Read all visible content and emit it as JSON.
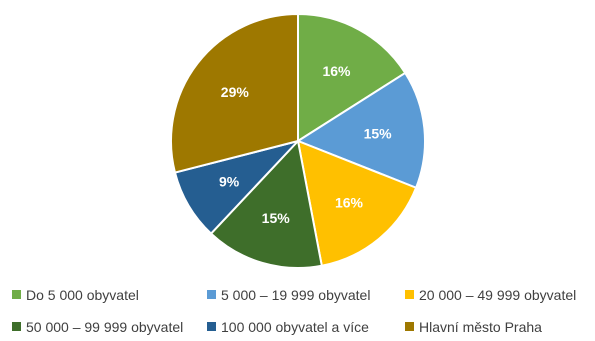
{
  "chart_data": {
    "type": "pie",
    "title": "",
    "start_angle_deg": 0,
    "direction": "clockwise",
    "legend_position": "bottom",
    "slices": [
      {
        "label": "Do 5 000 obyvatel",
        "value": 16,
        "display": "16%",
        "color": "#70AD47"
      },
      {
        "label": "5 000 – 19 999 obyvatel",
        "value": 15,
        "display": "15%",
        "color": "#5B9BD5"
      },
      {
        "label": "20 000 – 49 999 obyvatel",
        "value": 16,
        "display": "16%",
        "color": "#FFC000"
      },
      {
        "label": "50 000 – 99 999 obyvatel",
        "value": 15,
        "display": "15%",
        "color": "#3E6E2A"
      },
      {
        "label": "100 000 obyvatel a více",
        "value": 9,
        "display": "9%",
        "color": "#255E91"
      },
      {
        "label": "Hlavní město Praha",
        "value": 29,
        "display": "29%",
        "color": "#9E7800"
      }
    ]
  }
}
